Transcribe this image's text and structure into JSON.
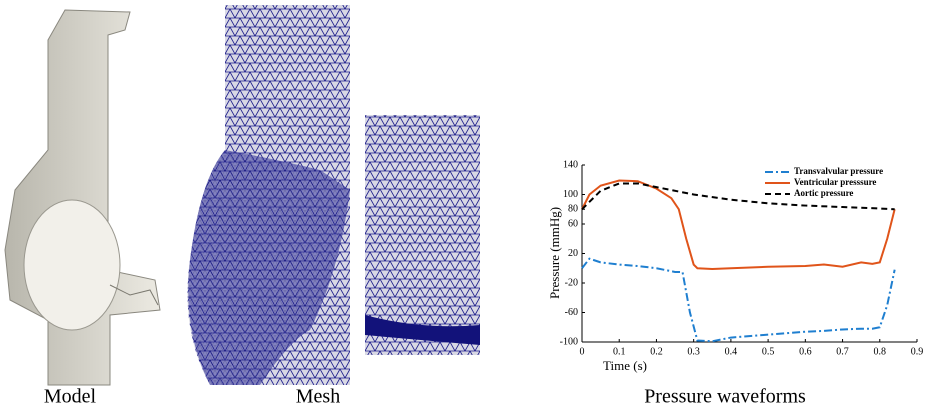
{
  "panels": {
    "model_label": "Model",
    "mesh_label": "Mesh"
  },
  "chart_data": {
    "type": "line",
    "caption": "Pressure waveforms",
    "x_label": "Time (s)",
    "y_label": "Pressure (mmHg)",
    "xlim": [
      0,
      0.9
    ],
    "xticks": [
      0,
      0.1,
      0.2,
      0.3,
      0.4,
      0.5,
      0.6,
      0.7,
      0.8,
      0.9
    ],
    "ylim": [
      -100,
      140
    ],
    "yticks": [
      -100,
      -60,
      -20,
      20,
      60,
      80,
      100,
      140
    ],
    "legend": "upper-right",
    "series": [
      {
        "name": "Transvalvular pressure",
        "color": "#1f7fd0",
        "linestyle": "dashdot",
        "x": [
          0,
          0.02,
          0.05,
          0.1,
          0.15,
          0.2,
          0.25,
          0.27,
          0.29,
          0.31,
          0.35,
          0.4,
          0.5,
          0.6,
          0.65,
          0.7,
          0.75,
          0.78,
          0.8,
          0.82,
          0.84
        ],
        "values": [
          0,
          13,
          8,
          5,
          3,
          0,
          -5,
          -5,
          -60,
          -98,
          -99,
          -94,
          -90,
          -86,
          -85,
          -83,
          -82,
          -82,
          -80,
          -50,
          -2
        ]
      },
      {
        "name": "Ventricular presssure",
        "color": "#e0541a",
        "linestyle": "solid",
        "x": [
          0,
          0.02,
          0.05,
          0.1,
          0.15,
          0.2,
          0.24,
          0.26,
          0.28,
          0.3,
          0.31,
          0.35,
          0.4,
          0.5,
          0.6,
          0.65,
          0.7,
          0.75,
          0.78,
          0.8,
          0.82,
          0.84
        ],
        "values": [
          80,
          100,
          112,
          119,
          118,
          108,
          95,
          80,
          40,
          5,
          0,
          -1,
          0,
          2,
          3,
          5,
          2,
          8,
          6,
          8,
          40,
          80
        ]
      },
      {
        "name": "Aortic pressure",
        "color": "#000000",
        "linestyle": "dashed",
        "x": [
          0,
          0.05,
          0.1,
          0.15,
          0.2,
          0.3,
          0.4,
          0.5,
          0.6,
          0.7,
          0.8,
          0.84
        ],
        "values": [
          80,
          105,
          115,
          115,
          110,
          100,
          93,
          88,
          85,
          83,
          81,
          80
        ]
      }
    ]
  }
}
